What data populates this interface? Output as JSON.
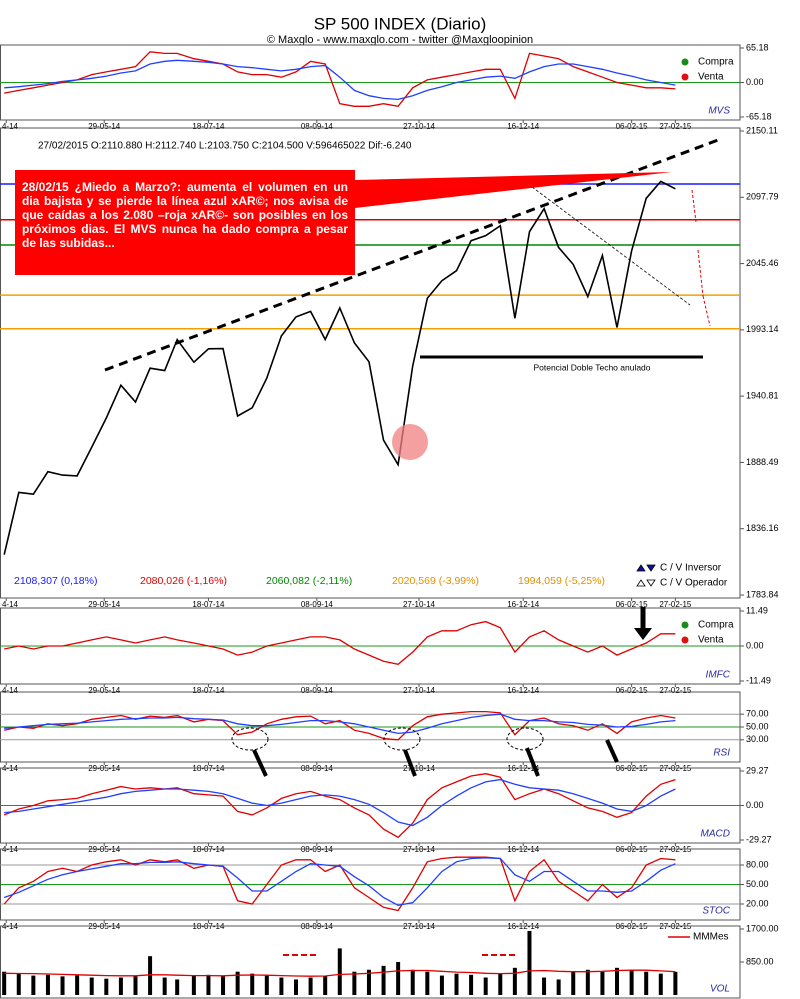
{
  "chart_data": {
    "type": "stock-panels",
    "title": "SP 500 INDEX (Diario)",
    "subtitle": "© Maxglo - www.maxglo.com - twitter @Maxgloopinion",
    "x": [
      "2014-04-11",
      "2014-04-18",
      "2014-04-25",
      "2014-05-02",
      "2014-05-09",
      "2014-05-16",
      "2014-05-23",
      "2014-05-30",
      "2014-06-06",
      "2014-06-13",
      "2014-06-20",
      "2014-06-27",
      "2014-07-03",
      "2014-07-11",
      "2014-07-18",
      "2014-07-25",
      "2014-08-01",
      "2014-08-08",
      "2014-08-15",
      "2014-08-22",
      "2014-08-29",
      "2014-09-05",
      "2014-09-12",
      "2014-09-19",
      "2014-09-26",
      "2014-10-03",
      "2014-10-10",
      "2014-10-17",
      "2014-10-24",
      "2014-10-31",
      "2014-11-07",
      "2014-11-14",
      "2014-11-21",
      "2014-11-28",
      "2014-12-05",
      "2014-12-12",
      "2014-12-19",
      "2014-12-26",
      "2015-01-02",
      "2015-01-09",
      "2015-01-16",
      "2015-01-23",
      "2015-01-30",
      "2015-02-06",
      "2015-02-13",
      "2015-02-20",
      "2015-02-27"
    ],
    "xlim": [
      "2014-04-09",
      "2015-03-30"
    ],
    "xticks": [
      {
        "value": "2014-04-12",
        "label": "4-14"
      },
      {
        "value": "2014-05-29",
        "label": "29-05-14"
      },
      {
        "value": "2014-07-18",
        "label": "18-07-14"
      },
      {
        "value": "2014-09-08",
        "label": "08-09-14"
      },
      {
        "value": "2014-10-27",
        "label": "27-10-14"
      },
      {
        "value": "2014-12-16",
        "label": "16-12-14"
      },
      {
        "value": "2015-02-06",
        "label": "06-02-15"
      },
      {
        "value": "2015-02-27",
        "label": "27-02-15"
      }
    ],
    "panels": [
      {
        "label": "MVS",
        "ylim": [
          -65.18,
          65.18
        ],
        "yticks": [
          65.18,
          {
            "value": 0,
            "label": "0.00"
          },
          -65.18
        ],
        "grid": true,
        "legend": [
          {
            "label": "Compra",
            "color": "#1a8a1a"
          },
          {
            "label": "Venta",
            "color": "#e01010"
          }
        ],
        "legend_marker": "dot",
        "legend_corner": "upper right",
        "series": [
          {
            "type": "line",
            "color": "#e00000",
            "values": [
              -20,
              -15,
              -10,
              -5,
              0,
              5,
              15,
              20,
              25,
              30,
              58,
              55,
              55,
              45,
              40,
              35,
              20,
              15,
              15,
              10,
              20,
              40,
              35,
              -40,
              -45,
              -45,
              -40,
              -45,
              -10,
              5,
              10,
              15,
              20,
              25,
              25,
              -30,
              55,
              50,
              45,
              30,
              20,
              10,
              0,
              -5,
              -10,
              -10,
              -12
            ]
          },
          {
            "type": "line",
            "color": "#2040ff",
            "values": [
              -10,
              -8,
              -5,
              -2,
              2,
              5,
              8,
              12,
              18,
              22,
              35,
              40,
              42,
              40,
              38,
              35,
              30,
              28,
              25,
              22,
              25,
              30,
              32,
              10,
              -15,
              -25,
              -30,
              -32,
              -25,
              -15,
              -8,
              0,
              5,
              10,
              12,
              8,
              20,
              30,
              35,
              35,
              30,
              25,
              18,
              12,
              5,
              0,
              -5
            ]
          }
        ]
      },
      {
        "info": "27/02/2015  O:2110.880  H:2112.740  L:2103.750  C:2104.500  V:596465022  Dif:-6.240",
        "ylim": [
          1783.84,
          2150.11
        ],
        "yticks": [
          2150.11,
          2097.79,
          2045.46,
          1993.14,
          1940.81,
          1888.49,
          1836.16,
          1783.84
        ],
        "grid": false,
        "series": [
          {
            "type": "line",
            "color": "#000000",
            "values": [
              1815.69,
              1864.85,
              1863.4,
              1881.14,
              1878.48,
              1877.86,
              1900.53,
              1923.57,
              1949.44,
              1936.16,
              1962.87,
              1960.96,
              1985.44,
              1967.57,
              1978.22,
              1978.34,
              1925.15,
              1931.59,
              1955.06,
              1988.4,
              2003.37,
              2007.71,
              1985.54,
              2010.4,
              1982.85,
              1967.9,
              1906.13,
              1886.76,
              1964.58,
              2018.05,
              2031.92,
              2039.82,
              2063.5,
              2067.56,
              2075.37,
              2002.33,
              2070.65,
              2088.77,
              2058.2,
              2044.81,
              2019.42,
              2051.82,
              1994.99,
              2055.47,
              2096.99,
              2110.3,
              2104.5
            ]
          }
        ],
        "levels": [
          {
            "value": 2108.307,
            "label": "2108,307 (0,18%)",
            "color": "#1a1aff"
          },
          {
            "value": 2080.026,
            "label": "2080,026 (-1,16%)",
            "color": "#e00000"
          },
          {
            "value": 2060.082,
            "label": "2060,082 (-2,11%)",
            "color": "#008800"
          },
          {
            "value": 2020.569,
            "label": "2020,569 (-3,99%)",
            "color": "#f0a000"
          },
          {
            "value": 1994.059,
            "label": "1994,059 (-5,25%)",
            "color": "#f0a000"
          }
        ],
        "legend": [
          {
            "label": "C / V Inversor",
            "color": "#1010a0"
          },
          {
            "label": "C / V Operador",
            "color": "#ffffff"
          }
        ],
        "legend_marker": "triangle",
        "legend_corner": "lower right",
        "annotation": "28/02/15 ¿Miedo a Marzo?: aumenta el volumen en un dia bajista y se pierde la línea azul xAR©; nos avisa de que caídas a los 2.080 –roja xAR©- son posibles en los próximos dias. El MVS nunca ha dado compra a pesar de las subidas...",
        "note": "Potencial Doble Techo anulado"
      },
      {
        "label": "IMFC",
        "ylim": [
          -11.49,
          11.49
        ],
        "yticks": [
          11.49,
          {
            "value": 0,
            "label": "0.00"
          },
          -11.49
        ],
        "grid": true,
        "legend": [
          {
            "label": "Compra",
            "color": "#1a8a1a"
          },
          {
            "label": "Venta",
            "color": "#e01010"
          }
        ],
        "legend_marker": "dot",
        "legend_corner": "upper right",
        "series": [
          {
            "type": "line",
            "color": "#e00000",
            "values": [
              -1,
              0,
              -1,
              0,
              0,
              1,
              2,
              3,
              2,
              1,
              2,
              3,
              2,
              1,
              0,
              -1,
              -3,
              -2,
              0,
              1,
              2,
              3,
              3,
              2,
              -1,
              -3,
              -5,
              -6,
              -2,
              3,
              5,
              5,
              7,
              8,
              6,
              -2,
              3,
              5,
              2,
              0,
              -2,
              0,
              -3,
              -1,
              1,
              4,
              4
            ]
          }
        ]
      },
      {
        "label": "RSI",
        "ylim": [
          0,
          100
        ],
        "yticks": [
          {
            "value": 70,
            "label": "70.00"
          },
          {
            "value": 50,
            "label": "50.00"
          },
          {
            "value": 30,
            "label": "30.00"
          }
        ],
        "grid": true,
        "series": [
          {
            "type": "line",
            "color": "#e00000",
            "values": [
              45,
              50,
              48,
              55,
              52,
              55,
              62,
              65,
              68,
              62,
              67,
              65,
              68,
              58,
              62,
              60,
              38,
              42,
              55,
              62,
              66,
              67,
              55,
              60,
              45,
              40,
              32,
              30,
              52,
              66,
              70,
              72,
              74,
              74,
              72,
              38,
              60,
              64,
              55,
              52,
              45,
              55,
              40,
              58,
              64,
              68,
              64
            ]
          },
          {
            "type": "line",
            "color": "#2040ff",
            "values": [
              48,
              50,
              52,
              54,
              55,
              56,
              58,
              60,
              62,
              63,
              64,
              64,
              65,
              63,
              62,
              61,
              55,
              52,
              52,
              54,
              57,
              60,
              60,
              58,
              55,
              50,
              45,
              40,
              42,
              48,
              55,
              60,
              65,
              68,
              70,
              62,
              60,
              60,
              58,
              57,
              54,
              53,
              50,
              51,
              54,
              58,
              60
            ]
          }
        ]
      },
      {
        "label": "MACD",
        "ylim": [
          -29.27,
          29.27
        ],
        "yticks": [
          29.27,
          {
            "value": 0,
            "label": "0.00"
          },
          -29.27
        ],
        "grid": true,
        "series": [
          {
            "type": "line",
            "color": "#e00000",
            "values": [
              -8,
              -3,
              0,
              4,
              5,
              6,
              10,
              13,
              16,
              14,
              15,
              14,
              15,
              10,
              9,
              8,
              -5,
              -8,
              -2,
              6,
              10,
              12,
              8,
              5,
              -2,
              -8,
              -20,
              -27,
              -15,
              5,
              15,
              20,
              25,
              27,
              24,
              5,
              10,
              14,
              10,
              4,
              -2,
              -5,
              -10,
              -6,
              8,
              18,
              22
            ]
          },
          {
            "type": "line",
            "color": "#2040ff",
            "values": [
              -6,
              -5,
              -3,
              -1,
              1,
              3,
              5,
              7,
              10,
              12,
              13,
              14,
              14,
              13,
              12,
              10,
              6,
              2,
              0,
              2,
              5,
              8,
              9,
              8,
              5,
              1,
              -6,
              -14,
              -17,
              -10,
              0,
              8,
              15,
              20,
              22,
              18,
              15,
              14,
              13,
              10,
              6,
              2,
              -3,
              -5,
              0,
              8,
              14
            ]
          }
        ]
      },
      {
        "label": "STOC",
        "ylim": [
          0,
          100
        ],
        "yticks": [
          {
            "value": 80,
            "label": "80.00"
          },
          {
            "value": 50,
            "label": "50.00"
          },
          {
            "value": 20,
            "label": "20.00"
          }
        ],
        "grid": true,
        "series": [
          {
            "type": "line",
            "color": "#e00000",
            "values": [
              20,
              45,
              55,
              70,
              75,
              70,
              80,
              85,
              88,
              80,
              88,
              85,
              88,
              75,
              80,
              78,
              25,
              20,
              50,
              80,
              88,
              88,
              70,
              80,
              45,
              30,
              15,
              10,
              45,
              85,
              90,
              92,
              92,
              92,
              90,
              25,
              70,
              88,
              55,
              40,
              25,
              50,
              30,
              45,
              80,
              90,
              88
            ]
          },
          {
            "type": "line",
            "color": "#2040ff",
            "values": [
              30,
              38,
              48,
              58,
              65,
              70,
              74,
              78,
              82,
              82,
              84,
              84,
              85,
              82,
              80,
              78,
              60,
              40,
              40,
              55,
              70,
              82,
              80,
              78,
              62,
              48,
              30,
              18,
              22,
              45,
              70,
              85,
              90,
              91,
              90,
              65,
              55,
              70,
              70,
              55,
              40,
              40,
              38,
              40,
              55,
              72,
              82
            ]
          }
        ]
      },
      {
        "label": "VOL",
        "ylim": [
          0,
          1700
        ],
        "yticks": [
          {
            "value": 1700,
            "label": "1700.00"
          },
          {
            "value": 850,
            "label": "850.00"
          }
        ],
        "grid": false,
        "legend_corner": "upper right",
        "series": [
          {
            "type": "bar",
            "color": "#000000",
            "values": [
              600,
              550,
              500,
              520,
              480,
              500,
              450,
              420,
              450,
              480,
              1000,
              450,
              400,
              500,
              520,
              480,
              600,
              550,
              500,
              450,
              400,
              450,
              500,
              1200,
              600,
              650,
              750,
              850,
              650,
              600,
              500,
              550,
              520,
              450,
              550,
              700,
              1650,
              450,
              400,
              600,
              650,
              600,
              700,
              650,
              600,
              550,
              596
            ]
          },
          {
            "type": "line",
            "name": "MMMes",
            "color": "#e00000",
            "values": [
              560,
              555,
              550,
              540,
              530,
              520,
              510,
              500,
              495,
              495,
              520,
              520,
              510,
              500,
              500,
              495,
              510,
              515,
              510,
              500,
              490,
              485,
              490,
              530,
              540,
              560,
              590,
              620,
              630,
              630,
              610,
              590,
              580,
              560,
              550,
              560,
              620,
              630,
              610,
              600,
              600,
              610,
              630,
              640,
              640,
              620,
              600
            ]
          }
        ]
      }
    ]
  }
}
